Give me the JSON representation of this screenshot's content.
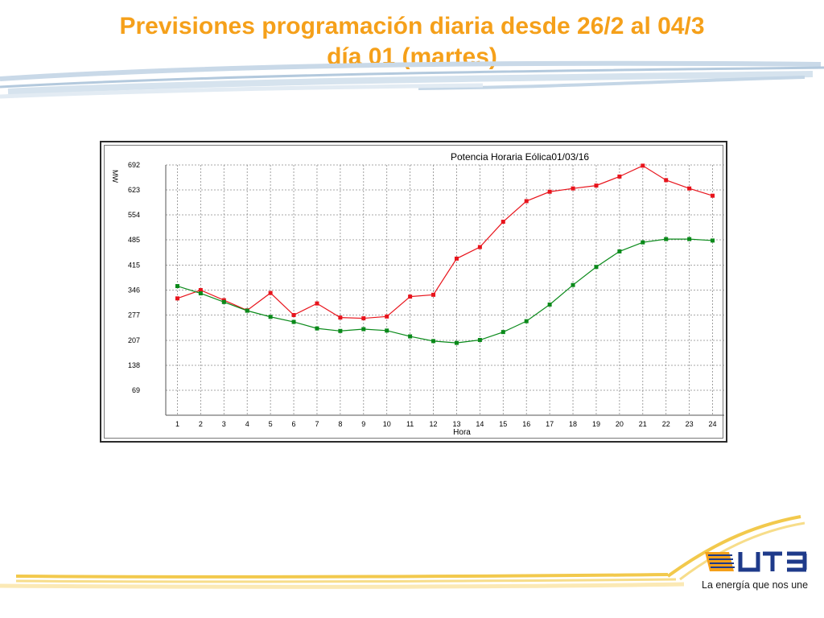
{
  "slide": {
    "title_line1": "Previsiones programación diaria desde 26/2 al 04/3",
    "title_line2": "día 01 (martes)"
  },
  "brand": {
    "logo_text": "UTE",
    "tagline": "La energía que nos une",
    "colors": {
      "orange": "#f5a01a",
      "blue": "#1e3a8a",
      "swoosh": "#a9c3d9",
      "swoosh_gold": "#f2c94c"
    }
  },
  "chart_data": {
    "type": "line",
    "title": "Potencia Horaria Eólica01/03/16",
    "xlabel": "Hora",
    "ylabel": "MW",
    "categories": [
      "1",
      "2",
      "3",
      "4",
      "5",
      "6",
      "7",
      "8",
      "9",
      "10",
      "11",
      "12",
      "13",
      "14",
      "15",
      "16",
      "17",
      "18",
      "19",
      "20",
      "21",
      "22",
      "23",
      "24"
    ],
    "y_ticks": [
      69,
      138,
      207,
      277,
      346,
      415,
      485,
      554,
      623,
      692
    ],
    "ylim": [
      0,
      692
    ],
    "grid": true,
    "series": [
      {
        "name": "red",
        "color": "#e8141c",
        "values": [
          323,
          346,
          318,
          290,
          338,
          277,
          309,
          270,
          268,
          273,
          328,
          333,
          433,
          465,
          535,
          592,
          618,
          627,
          635,
          660,
          690,
          650,
          627,
          607
        ]
      },
      {
        "name": "green",
        "color": "#0a8a1a",
        "values": [
          357,
          337,
          313,
          289,
          272,
          258,
          240,
          233,
          238,
          234,
          218,
          205,
          200,
          208,
          230,
          260,
          306,
          360,
          410,
          453,
          478,
          487,
          487,
          483
        ]
      }
    ]
  }
}
